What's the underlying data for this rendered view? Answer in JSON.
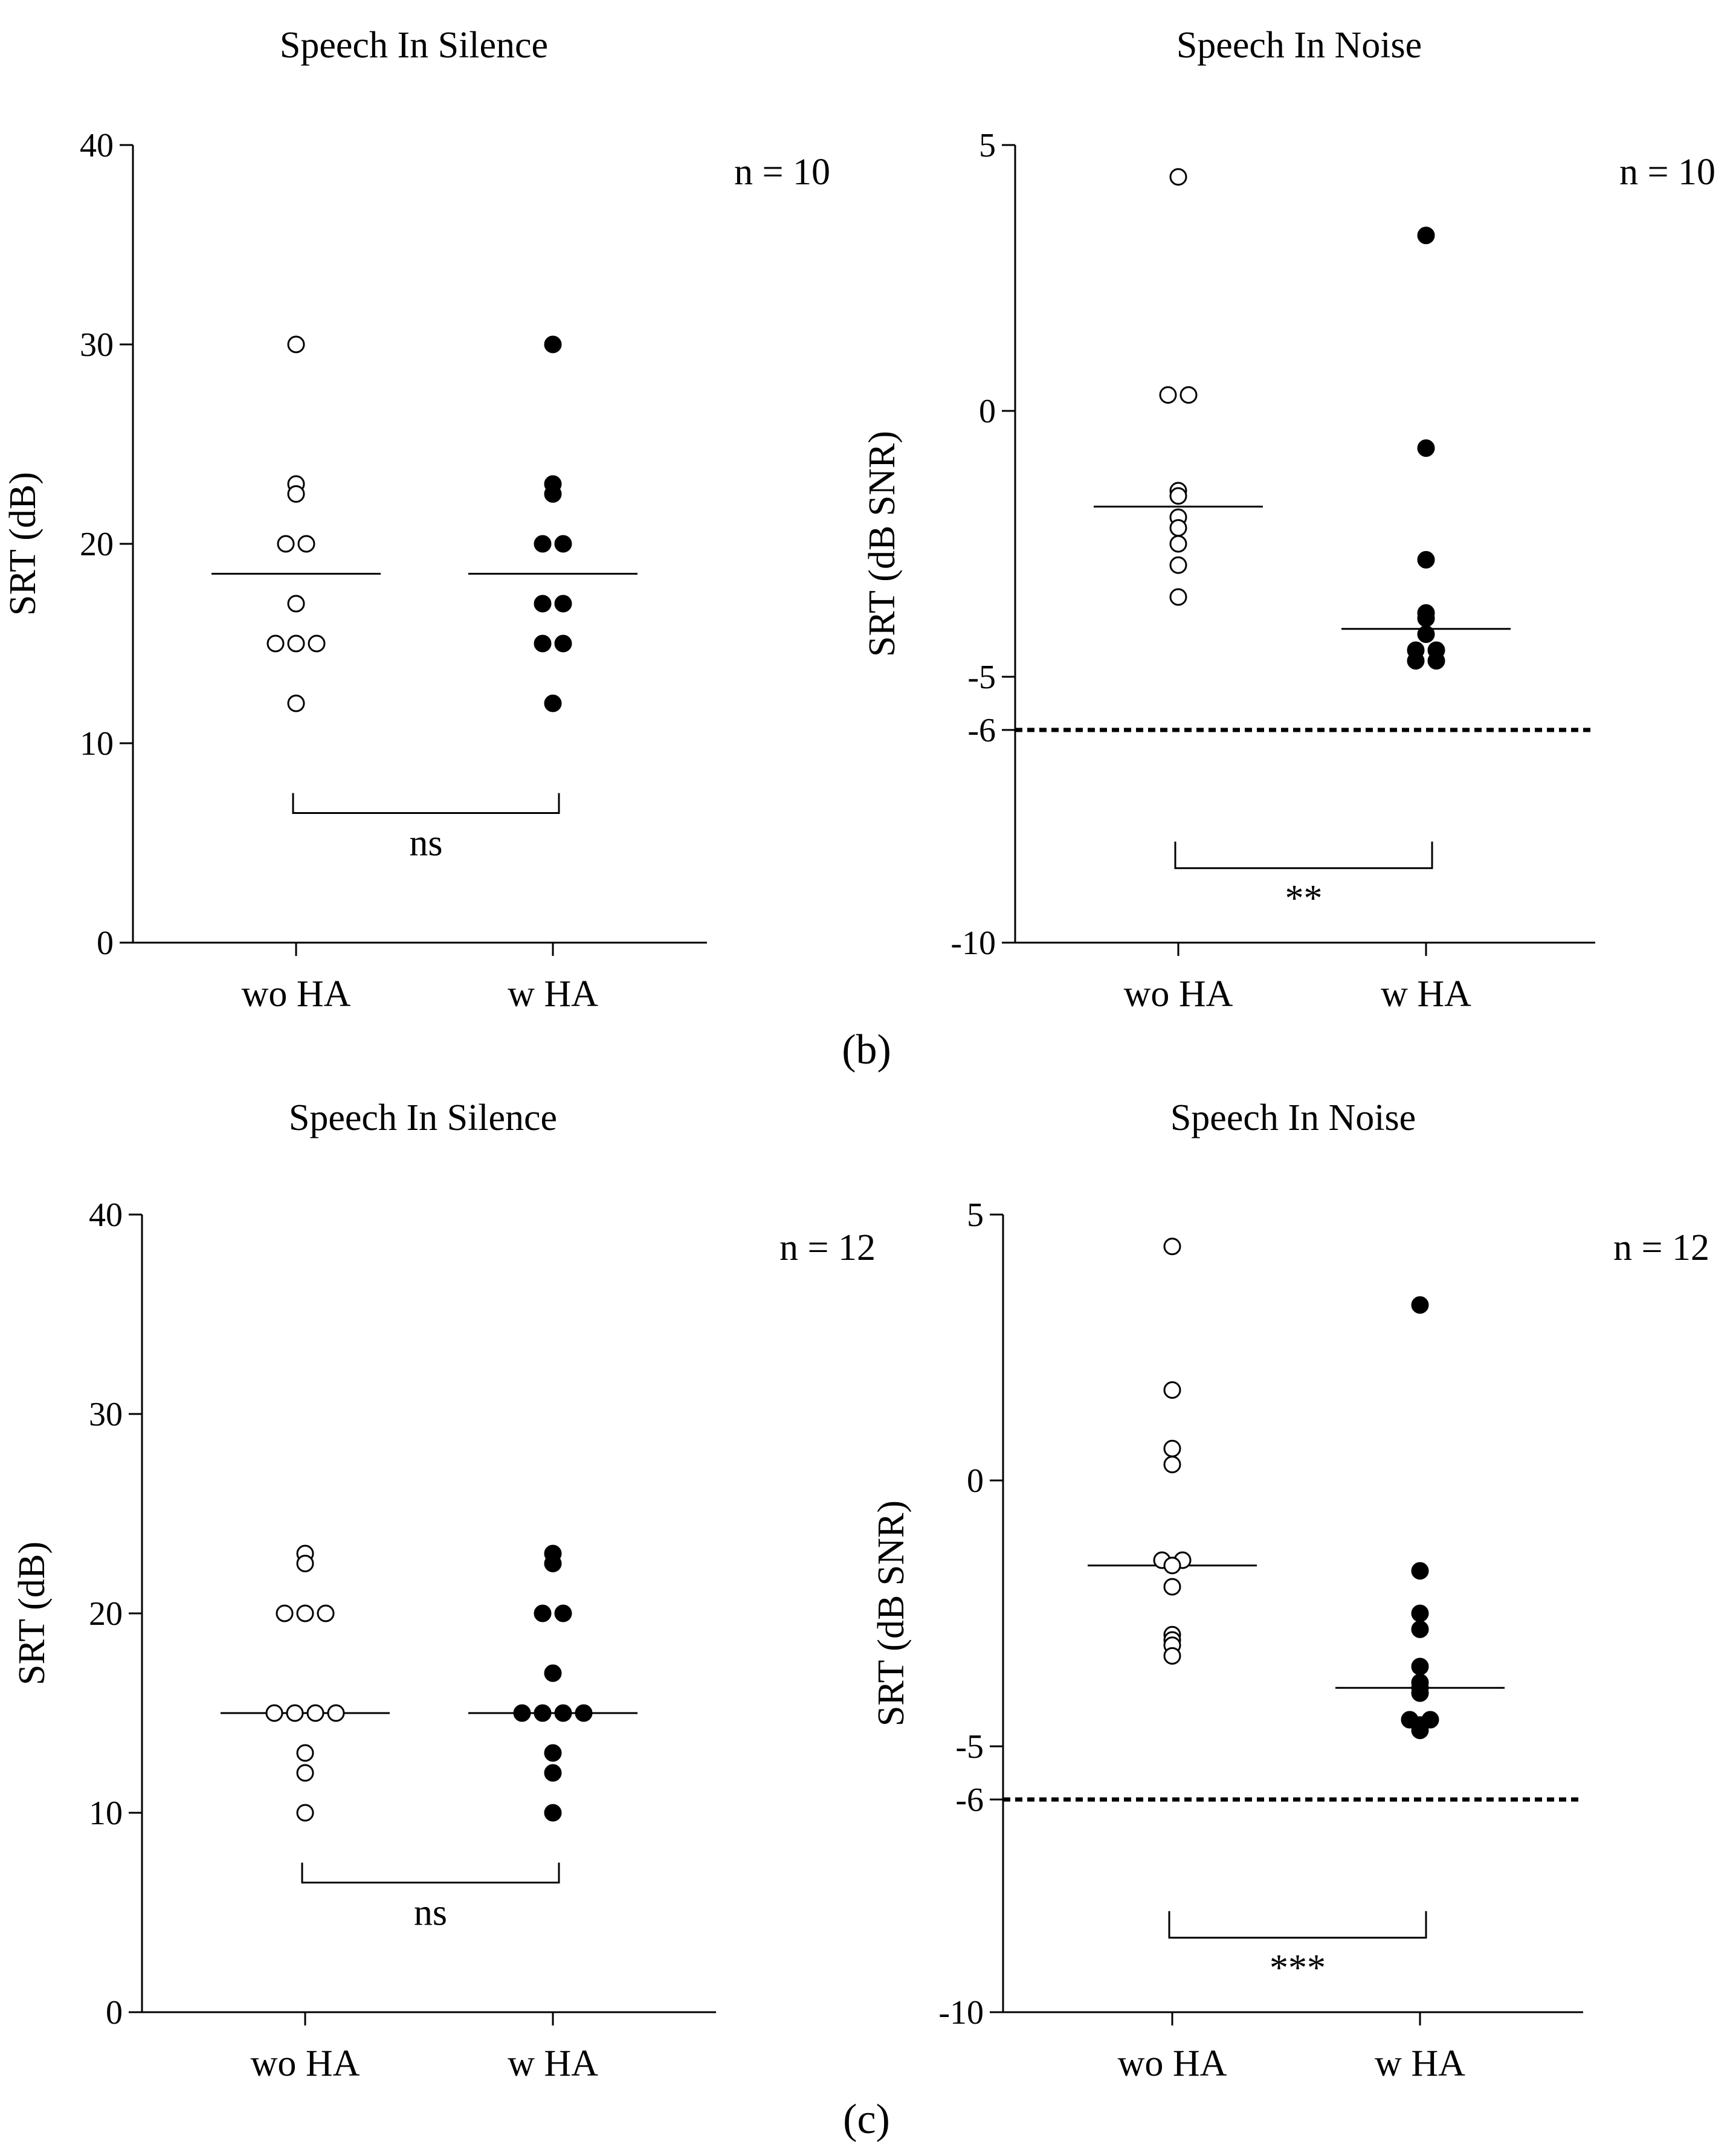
{
  "panel_labels": [
    "(b)",
    "(c)"
  ],
  "chart_data": [
    {
      "type": "scatter",
      "panel": "b",
      "title": "Speech In Silence",
      "ylabel": "SRT (dB)",
      "xlabel": "",
      "categories": [
        "wo HA",
        "w HA"
      ],
      "ylim": [
        0,
        40
      ],
      "yticks": [
        0,
        10,
        20,
        30,
        40
      ],
      "ytick_labels": [
        "0",
        "10",
        "20",
        "30",
        "40"
      ],
      "n_label": "n = 10",
      "series": [
        {
          "name": "wo HA",
          "marker": "open",
          "mean": 18.5,
          "values": [
            30,
            23,
            22.5,
            20,
            20,
            17,
            15,
            15,
            15,
            12
          ]
        },
        {
          "name": "w HA",
          "marker": "filled",
          "mean": 18.5,
          "values": [
            30,
            23,
            22.5,
            20,
            20,
            17,
            17,
            15,
            15,
            12
          ]
        }
      ],
      "significance": {
        "label": "ns",
        "y_top": 7.5,
        "y_bottom": 6.5
      },
      "reference_line": null
    },
    {
      "type": "scatter",
      "panel": "b",
      "title": "Speech In Noise",
      "ylabel": "SRT (dB SNR)",
      "xlabel": "",
      "categories": [
        "wo HA",
        "w HA"
      ],
      "ylim": [
        -10,
        5
      ],
      "yticks": [
        -10,
        -6,
        -5,
        0,
        5
      ],
      "ytick_labels": [
        "-10",
        "-6",
        "-5",
        "0",
        "5"
      ],
      "n_label": "n = 10",
      "series": [
        {
          "name": "wo HA",
          "marker": "open",
          "mean": -1.8,
          "values": [
            4.4,
            0.3,
            0.3,
            -1.5,
            -1.6,
            -2.0,
            -2.2,
            -2.5,
            -2.9,
            -3.5
          ]
        },
        {
          "name": "w HA",
          "marker": "filled",
          "mean": -4.1,
          "values": [
            3.3,
            -0.7,
            -2.8,
            -3.8,
            -3.9,
            -4.2,
            -4.5,
            -4.5,
            -4.7,
            -4.7
          ]
        }
      ],
      "significance": {
        "label": "**",
        "y_top": -8.1,
        "y_bottom": -8.6
      },
      "reference_line": {
        "y": -6,
        "style": "dotted"
      }
    },
    {
      "type": "scatter",
      "panel": "c",
      "title": "Speech In Silence",
      "ylabel": "SRT (dB)",
      "xlabel": "",
      "categories": [
        "wo HA",
        "w HA"
      ],
      "ylim": [
        0,
        40
      ],
      "yticks": [
        0,
        10,
        20,
        30,
        40
      ],
      "ytick_labels": [
        "0",
        "10",
        "20",
        "30",
        "40"
      ],
      "n_label": "n = 12",
      "series": [
        {
          "name": "wo HA",
          "marker": "open",
          "mean": 15,
          "values": [
            23,
            22.5,
            20,
            20,
            20,
            15,
            15,
            15,
            15,
            13,
            12,
            10
          ]
        },
        {
          "name": "w HA",
          "marker": "filled",
          "mean": 15,
          "values": [
            23,
            22.5,
            20,
            20,
            17,
            15,
            15,
            15,
            15,
            13,
            12,
            10
          ]
        }
      ],
      "significance": {
        "label": "ns",
        "y_top": 7.5,
        "y_bottom": 6.5
      },
      "reference_line": null
    },
    {
      "type": "scatter",
      "panel": "c",
      "title": "Speech In Noise",
      "ylabel": "SRT (dB SNR)",
      "xlabel": "",
      "categories": [
        "wo HA",
        "w HA"
      ],
      "ylim": [
        -10,
        5
      ],
      "yticks": [
        -10,
        -6,
        -5,
        0,
        5
      ],
      "ytick_labels": [
        "-10",
        "-6",
        "-5",
        "0",
        "5"
      ],
      "n_label": "n = 12",
      "series": [
        {
          "name": "wo HA",
          "marker": "open",
          "mean": -1.6,
          "values": [
            4.4,
            1.7,
            0.6,
            0.3,
            -1.5,
            -1.6,
            -1.5,
            -2.0,
            -2.9,
            -3.0,
            -3.1,
            -3.3
          ]
        },
        {
          "name": "w HA",
          "marker": "filled",
          "mean": -3.9,
          "values": [
            3.3,
            -1.7,
            -2.5,
            -2.8,
            -3.5,
            -3.8,
            -3.9,
            -4.0,
            -4.5,
            -4.5,
            -4.6,
            -4.7
          ]
        }
      ],
      "significance": {
        "label": "***",
        "y_top": -8.1,
        "y_bottom": -8.6
      },
      "reference_line": {
        "y": -6,
        "style": "dotted"
      }
    }
  ]
}
